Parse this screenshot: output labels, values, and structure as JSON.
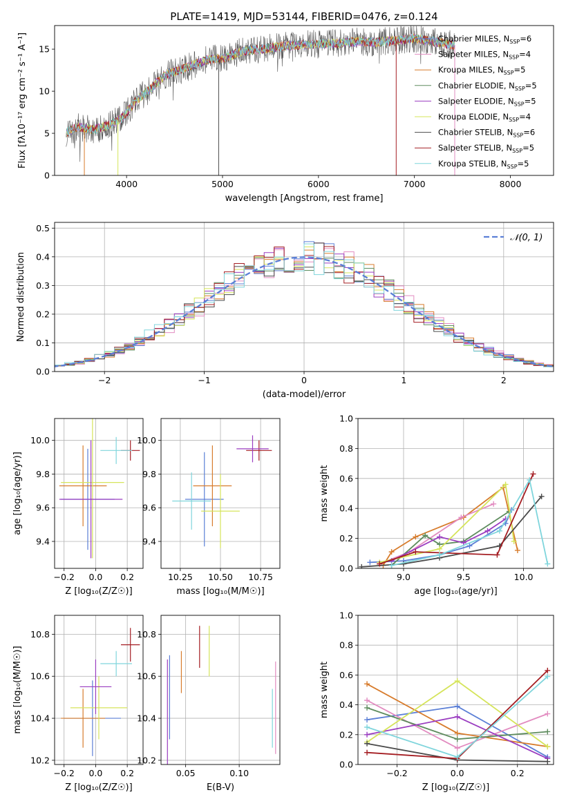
{
  "title": "PLATE=1419, MJD=53144, FIBERID=0476, z=0.124",
  "colors": [
    "#1f77b4",
    "#ff7f0e",
    "#d62728",
    "#bcbd22",
    "#9467bd",
    "#7f7f7f"
  ],
  "panels": {
    "spectrum": {
      "xlabel": "wavelength [Angstrom, rest frame]",
      "ylabel": "Flux [fλ10⁻¹⁷ erg cm⁻² s⁻¹ A⁻¹]",
      "xticks": [
        "4000",
        "5000",
        "6000",
        "7000",
        "8000"
      ],
      "yticks": [
        "0",
        "5",
        "10",
        "15"
      ]
    },
    "residuals": {
      "xlabel": "(data-model)/error",
      "ylabel": "Normed distribution",
      "xticks": [
        "−2",
        "−1",
        "0",
        "1",
        "2"
      ],
      "yticks": [
        "0.0",
        "0.1",
        "0.2",
        "0.3",
        "0.4",
        "0.5"
      ],
      "legend_label": "𝒩(0, 1)"
    },
    "age_Z": {
      "xlabel": "Z [log₁₀(Z/Z☉)]",
      "ylabel": "age  [log₁₀(age/yr)]",
      "xticks": [
        "−0.2",
        "0.0",
        "0.2"
      ],
      "yticks": [
        "9.4",
        "9.6",
        "9.8",
        "10.0"
      ]
    },
    "age_mass": {
      "xlabel": "mass [log₁₀(M/M☉)]",
      "xticks": [
        "10.25",
        "10.50",
        "10.75"
      ],
      "yticks": [
        "9.4",
        "9.6",
        "9.8",
        "10.0"
      ]
    },
    "weight_age": {
      "xlabel": "age  [log₁₀(age/yr)]",
      "ylabel": "mass weight",
      "xticks": [
        "9.0",
        "9.5",
        "10.0"
      ],
      "yticks": [
        "0.0",
        "0.2",
        "0.4",
        "0.6",
        "0.8",
        "1.0"
      ]
    },
    "mass_Z": {
      "xlabel": "Z [log₁₀(Z/Z☉)]",
      "ylabel": "mass [log₁₀(M/M☉)]",
      "xticks": [
        "−0.2",
        "0.0",
        "0.2"
      ],
      "yticks": [
        "10.2",
        "10.4",
        "10.6",
        "10.8"
      ]
    },
    "mass_ebv": {
      "xlabel": "E(B-V)",
      "xticks": [
        "0.05",
        "0.10"
      ],
      "yticks": [
        "10.2",
        "10.4",
        "10.6",
        "10.8"
      ]
    },
    "weight_Z": {
      "xlabel": "Z [log₁₀(Z/Z☉)]",
      "ylabel": "mass weight",
      "xticks": [
        "−0.2",
        "0.0",
        "0.2"
      ],
      "yticks": [
        "0.0",
        "0.2",
        "0.4",
        "0.6",
        "0.8",
        "1.0"
      ]
    }
  },
  "chart_data": [
    {
      "type": "line",
      "title": "PLATE=1419, MJD=53144, FIBERID=0476, z=0.124",
      "xlabel": "wavelength [Angstrom, rest frame]",
      "ylabel": "Flux [fλ10⁻¹⁷ erg cm⁻² s⁻¹ A⁻¹]",
      "xlim": [
        3250,
        8450
      ],
      "ylim": [
        0,
        17.8
      ],
      "x": [
        3370,
        3500,
        3650,
        3800,
        3950,
        4100,
        4250,
        4400,
        4550,
        4700,
        4850,
        5000,
        5200,
        5400,
        5600,
        5800,
        6000,
        6200,
        6400,
        6600,
        6800,
        7000,
        7200,
        7400
      ],
      "flux": [
        5.1,
        5.8,
        5.4,
        5.9,
        6.8,
        8.9,
        10.3,
        11.9,
        12.5,
        13.1,
        13.8,
        13.9,
        14.7,
        15.0,
        15.3,
        15.5,
        15.6,
        15.7,
        15.9,
        15.8,
        16.0,
        16.3,
        15.9,
        15.5
      ],
      "series": [
        {
          "name": "Chabrier MILES, N_SSP=6",
          "color": "#5b7fd6",
          "label": "Chabrier MILES, N",
          "sub": "SSP",
          "suffix": "=6"
        },
        {
          "name": "Salpeter MILES, N_SSP=4",
          "color": "#e28bc0",
          "label": "Salpeter MILES, N",
          "sub": "SSP",
          "suffix": "=4"
        },
        {
          "name": "Kroupa MILES, N_SSP=5",
          "color": "#d77b2b",
          "label": "Kroupa MILES, N",
          "sub": "SSP",
          "suffix": "=5"
        },
        {
          "name": "Chabrier ELODIE, N_SSP=5",
          "color": "#5e8c5e",
          "label": "Chabrier ELODIE, N",
          "sub": "SSP",
          "suffix": "=5"
        },
        {
          "name": "Salpeter ELODIE, N_SSP=5",
          "color": "#9a3cc0",
          "label": "Salpeter ELODIE, N",
          "sub": "SSP",
          "suffix": "=5"
        },
        {
          "name": "Kroupa ELODIE, N_SSP=4",
          "color": "#d5e45a",
          "label": "Kroupa ELODIE, N",
          "sub": "SSP",
          "suffix": "=4"
        },
        {
          "name": "Chabrier STELIB, N_SSP=6",
          "color": "#4a4a4a",
          "label": "Chabrier STELIB, N",
          "sub": "SSP",
          "suffix": "=6"
        },
        {
          "name": "Salpeter STELIB, N_SSP=5",
          "color": "#a41d22",
          "label": "Salpeter STELIB, N",
          "sub": "SSP",
          "suffix": "=5"
        },
        {
          "name": "Kroupa STELIB, N_SSP=5",
          "color": "#7fd5dc",
          "label": "Kroupa STELIB, N",
          "sub": "SSP",
          "suffix": "=5"
        }
      ]
    },
    {
      "type": "bar",
      "xlabel": "(data-model)/error",
      "ylabel": "Normed distribution",
      "xlim": [
        -2.5,
        2.5
      ],
      "ylim": [
        0,
        0.52
      ],
      "bin_width": 0.1,
      "gaussian": {
        "name": "𝒩(0, 1)",
        "mean": 0,
        "sigma": 1
      },
      "hist_series": 9
    },
    {
      "type": "scatter",
      "xlabel": "Z [log₁₀(Z/Z☉)]",
      "ylabel": "age  [log₁₀(age/yr)]",
      "xlim": [
        -0.26,
        0.3
      ],
      "ylim": [
        9.24,
        10.13
      ],
      "points": [
        {
          "x": -0.05,
          "xerr": 0.17,
          "y": 9.65,
          "yerr": 0.3
        },
        {
          "x": -0.08,
          "xerr": 0.15,
          "y": 9.73,
          "yerr": 0.24
        },
        {
          "x": 0.22,
          "xerr": 0.06,
          "y": 9.94,
          "yerr": 0.06
        },
        {
          "x": -0.02,
          "xerr": 0.2,
          "y": 9.75,
          "yerr": 0.45
        },
        {
          "x": -0.03,
          "xerr": 0.2,
          "y": 9.65,
          "yerr": 0.35
        },
        {
          "x": 0.13,
          "xerr": 0.1,
          "y": 9.94,
          "yerr": 0.08
        }
      ]
    },
    {
      "type": "scatter",
      "xlabel": "mass [log₁₀(M/M☉)]",
      "xlim": [
        10.13,
        10.87
      ],
      "ylim": [
        9.24,
        10.13
      ],
      "points": [
        {
          "x": 10.4,
          "xerr": 0.12,
          "y": 9.65,
          "yerr": 0.28
        },
        {
          "x": 10.45,
          "xerr": 0.12,
          "y": 9.73,
          "yerr": 0.24
        },
        {
          "x": 10.74,
          "xerr": 0.08,
          "y": 9.94,
          "yerr": 0.06
        },
        {
          "x": 10.5,
          "xerr": 0.12,
          "y": 9.58,
          "yerr": 0.22
        },
        {
          "x": 10.7,
          "xerr": 0.1,
          "y": 9.95,
          "yerr": 0.08
        },
        {
          "x": 10.32,
          "xerr": 0.12,
          "y": 9.64,
          "yerr": 0.17
        }
      ]
    },
    {
      "type": "line",
      "xlabel": "age  [log₁₀(age/yr)]",
      "ylabel": "mass weight",
      "xlim": [
        8.62,
        10.25
      ],
      "ylim": [
        0,
        1
      ],
      "series": [
        {
          "color": "#5b7fd6",
          "x": [
            8.72,
            9.0,
            9.3,
            9.55,
            9.85,
            9.9
          ],
          "y": [
            0.04,
            0.05,
            0.09,
            0.15,
            0.3,
            0.39
          ]
        },
        {
          "color": "#d77b2b",
          "x": [
            8.83,
            8.9,
            9.1,
            9.5,
            9.83,
            9.95
          ],
          "y": [
            0.02,
            0.11,
            0.21,
            0.34,
            0.54,
            0.12
          ]
        },
        {
          "color": "#e28bc0",
          "x": [
            8.8,
            9.05,
            9.48,
            9.75
          ],
          "y": [
            0.03,
            0.11,
            0.34,
            0.43
          ]
        },
        {
          "color": "#5e8c5e",
          "x": [
            8.9,
            9.18,
            9.3,
            9.5,
            9.88
          ],
          "y": [
            0.02,
            0.22,
            0.16,
            0.18,
            0.38
          ]
        },
        {
          "color": "#9a3cc0",
          "x": [
            8.9,
            9.3,
            9.5,
            9.7,
            9.85
          ],
          "y": [
            0.05,
            0.21,
            0.17,
            0.25,
            0.33
          ]
        },
        {
          "color": "#d5e45a",
          "x": [
            8.8,
            9.3,
            9.85,
            9.92
          ],
          "y": [
            0.04,
            0.13,
            0.56,
            0.18
          ]
        },
        {
          "color": "#4a4a4a",
          "x": [
            8.65,
            9.0,
            9.3,
            9.8,
            10.15
          ],
          "y": [
            0.01,
            0.03,
            0.07,
            0.15,
            0.48
          ]
        },
        {
          "color": "#a41d22",
          "x": [
            8.8,
            9.1,
            9.78,
            10.08
          ],
          "y": [
            0.03,
            0.11,
            0.09,
            0.63
          ]
        },
        {
          "color": "#7fd5dc",
          "x": [
            8.9,
            9.3,
            9.8,
            10.05,
            10.2
          ],
          "y": [
            0.02,
            0.09,
            0.25,
            0.59,
            0.03
          ]
        }
      ]
    },
    {
      "type": "scatter",
      "xlabel": "Z [log₁₀(Z/Z☉)]",
      "ylabel": "mass [log₁₀(M/M☉)]",
      "xlim": [
        -0.26,
        0.3
      ],
      "ylim": [
        10.18,
        10.89
      ],
      "points": [
        {
          "x": -0.02,
          "xerr": 0.18,
          "y": 10.4,
          "yerr": 0.18
        },
        {
          "x": -0.08,
          "xerr": 0.14,
          "y": 10.4,
          "yerr": 0.14
        },
        {
          "x": 0.22,
          "xerr": 0.06,
          "y": 10.75,
          "yerr": 0.08
        },
        {
          "x": 0.02,
          "xerr": 0.18,
          "y": 10.45,
          "yerr": 0.15
        },
        {
          "x": 0.0,
          "xerr": 0.1,
          "y": 10.55,
          "yerr": 0.13
        },
        {
          "x": 0.13,
          "xerr": 0.1,
          "y": 10.66,
          "yerr": 0.06
        }
      ]
    },
    {
      "type": "scatter",
      "xlabel": "E(B-V)",
      "xlim": [
        0.027,
        0.138
      ],
      "ylim": [
        10.18,
        10.89
      ],
      "points": [
        {
          "x": 0.035,
          "y": 10.5,
          "yerr": 0.2
        },
        {
          "x": 0.046,
          "y": 10.62,
          "yerr": 0.1
        },
        {
          "x": 0.063,
          "y": 10.74,
          "yerr": 0.1
        },
        {
          "x": 0.072,
          "y": 10.72,
          "yerr": 0.12
        },
        {
          "x": 0.033,
          "y": 10.43,
          "yerr": 0.25
        },
        {
          "x": 0.131,
          "y": 10.4,
          "yerr": 0.14
        },
        {
          "x": 0.134,
          "y": 10.45,
          "yerr": 0.22
        }
      ]
    },
    {
      "type": "line",
      "xlabel": "Z [log₁₀(Z/Z☉)]",
      "ylabel": "mass weight",
      "xlim": [
        -0.33,
        0.32
      ],
      "ylim": [
        0,
        1
      ],
      "series": [
        {
          "color": "#5b7fd6",
          "x": [
            -0.3,
            0.0,
            0.3
          ],
          "y": [
            0.3,
            0.39,
            0.05
          ]
        },
        {
          "color": "#d77b2b",
          "x": [
            -0.3,
            0.0,
            0.3
          ],
          "y": [
            0.54,
            0.21,
            0.12
          ]
        },
        {
          "color": "#e28bc0",
          "x": [
            -0.3,
            0.0,
            0.3
          ],
          "y": [
            0.43,
            0.11,
            0.34
          ]
        },
        {
          "color": "#5e8c5e",
          "x": [
            -0.3,
            0.0,
            0.3
          ],
          "y": [
            0.38,
            0.17,
            0.22
          ]
        },
        {
          "color": "#9a3cc0",
          "x": [
            -0.3,
            0.0,
            0.3
          ],
          "y": [
            0.2,
            0.32,
            0.04
          ]
        },
        {
          "color": "#d5e45a",
          "x": [
            -0.3,
            0.0,
            0.3
          ],
          "y": [
            0.15,
            0.56,
            0.12
          ]
        },
        {
          "color": "#4a4a4a",
          "x": [
            -0.3,
            0.0,
            0.3
          ],
          "y": [
            0.14,
            0.03,
            0.02
          ]
        },
        {
          "color": "#a41d22",
          "x": [
            -0.3,
            0.0,
            0.3
          ],
          "y": [
            0.08,
            0.04,
            0.63
          ]
        },
        {
          "color": "#7fd5dc",
          "x": [
            -0.3,
            0.0,
            0.3
          ],
          "y": [
            0.25,
            0.05,
            0.59
          ]
        }
      ]
    }
  ]
}
